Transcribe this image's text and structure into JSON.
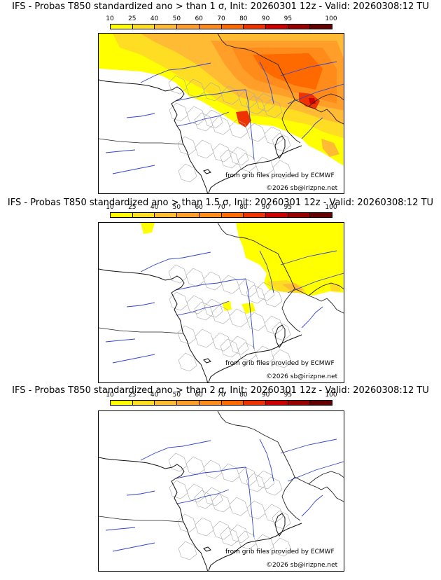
{
  "legend": {
    "ticks": [
      "10",
      "25",
      "40",
      "50",
      "60",
      "70",
      "80",
      "90",
      "95",
      "100"
    ],
    "colors": [
      "#ffff00",
      "#ffdd22",
      "#ffbb33",
      "#ff9f2a",
      "#ff8c1a",
      "#ff6a00",
      "#ee3300",
      "#cc0000",
      "#990000",
      "#660000"
    ]
  },
  "panels": [
    {
      "title": "IFS - Probas T850  standardized ano > than 1 σ, Init: 20260301 12z - Valid: 20260308:12 TU",
      "credit": "from grib files provided by ECMWF",
      "copyright": "©2026 sb@irizpne.net",
      "anomaly_level": "strong"
    },
    {
      "title": "IFS - Probas T850  standardized ano > than 1.5 σ, Init: 20260301 12z - Valid: 20260308:12 TU",
      "credit": "from grib files provided by ECMWF",
      "copyright": "©2026 sb@irizpne.net",
      "anomaly_level": "moderate"
    },
    {
      "title": "IFS - Probas T850  standardized ano > than 2 σ, Init: 20260301 12z - Valid: 20260308:12 TU",
      "credit": "from grib files provided by ECMWF",
      "copyright": "©2026 sb@irizpne.net",
      "anomaly_level": "none"
    }
  ]
}
